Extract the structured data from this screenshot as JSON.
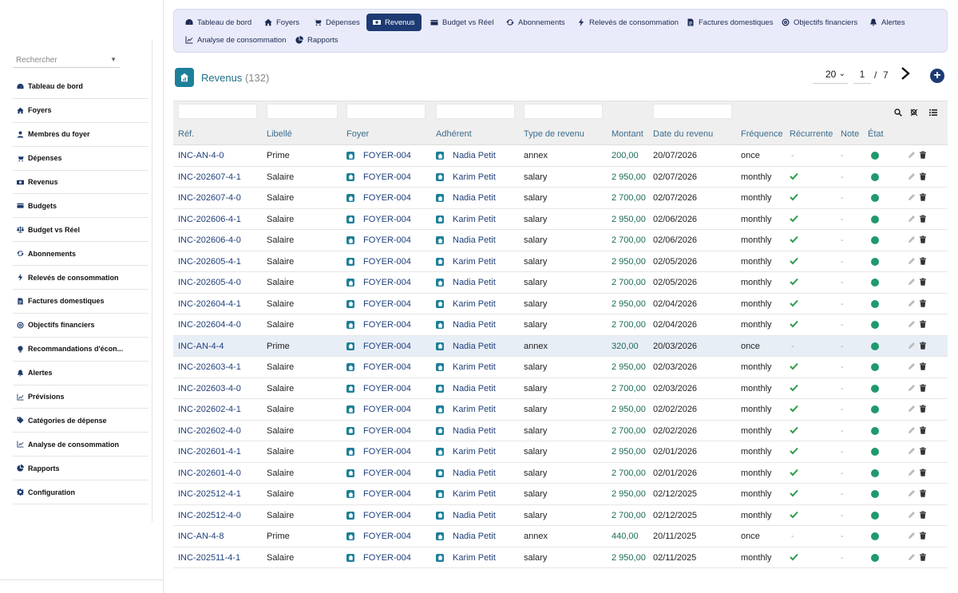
{
  "sidebar": {
    "search_placeholder": "Rechercher",
    "items": [
      {
        "label": "Tableau de bord",
        "icon": "dashboard-icon"
      },
      {
        "label": "Foyers",
        "icon": "home-icon"
      },
      {
        "label": "Membres du foyer",
        "icon": "user-icon"
      },
      {
        "label": "Dépenses",
        "icon": "cart-icon"
      },
      {
        "label": "Revenus",
        "icon": "money-icon"
      },
      {
        "label": "Budgets",
        "icon": "wallet-icon"
      },
      {
        "label": "Budget vs Réel",
        "icon": "balance-icon"
      },
      {
        "label": "Abonnements",
        "icon": "refresh-icon"
      },
      {
        "label": "Relevés de consommation",
        "icon": "bolt-icon"
      },
      {
        "label": "Factures domestiques",
        "icon": "invoice-icon"
      },
      {
        "label": "Objectifs financiers",
        "icon": "target-icon"
      },
      {
        "label": "Recommandations d'écon...",
        "icon": "lightbulb-icon"
      },
      {
        "label": "Alertes",
        "icon": "bell-icon"
      },
      {
        "label": "Prévisions",
        "icon": "trend-icon"
      },
      {
        "label": "Catégories de dépense",
        "icon": "tag-icon"
      },
      {
        "label": "Analyse de consommation",
        "icon": "chart-icon"
      },
      {
        "label": "Rapports",
        "icon": "pie-icon"
      },
      {
        "label": "Configuration",
        "icon": "gear-icon"
      }
    ]
  },
  "topnav": {
    "items": [
      {
        "label": "Tableau de bord",
        "icon": "dashboard-icon",
        "active": false
      },
      {
        "label": "Foyers",
        "icon": "home-icon",
        "active": false
      },
      {
        "label": "Dépenses",
        "icon": "cart-icon",
        "active": false
      },
      {
        "label": "Revenus",
        "icon": "money-icon",
        "active": true
      },
      {
        "label": "Budget vs Réel",
        "icon": "wallet-icon",
        "active": false
      },
      {
        "label": "Abonnements",
        "icon": "refresh-icon",
        "active": false
      },
      {
        "label": "Relevés de consommation",
        "icon": "bolt-icon",
        "active": false
      },
      {
        "label": "Factures domestiques",
        "icon": "invoice-icon",
        "active": false
      },
      {
        "label": "Objectifs financiers",
        "icon": "target-icon",
        "active": false
      },
      {
        "label": "Alertes",
        "icon": "bell-icon",
        "active": false
      },
      {
        "label": "Analyse de consommation",
        "icon": "chart-icon",
        "active": false
      },
      {
        "label": "Rapports",
        "icon": "pie-icon",
        "active": false
      }
    ]
  },
  "header": {
    "title": "Revenus",
    "count": "(132)",
    "per_page": "20",
    "page": "1",
    "page_sep": "/",
    "page_total": "7"
  },
  "table": {
    "columns": [
      "Réf.",
      "Libellé",
      "Foyer",
      "Adhérent",
      "Type de revenu",
      "Montant",
      "Date du revenu",
      "Fréquence",
      "Récurrente",
      "Note",
      "État"
    ],
    "rows": [
      {
        "ref": "INC-AN-4-0",
        "label": "Prime",
        "foyer": "FOYER-004",
        "member": "Nadia Petit",
        "type": "annex",
        "amount": "200,00",
        "date": "20/07/2026",
        "freq": "once",
        "recurring": false,
        "note": "-",
        "highlight": false
      },
      {
        "ref": "INC-202607-4-1",
        "label": "Salaire",
        "foyer": "FOYER-004",
        "member": "Karim Petit",
        "type": "salary",
        "amount": "2 950,00",
        "date": "02/07/2026",
        "freq": "monthly",
        "recurring": true,
        "note": "-",
        "highlight": false
      },
      {
        "ref": "INC-202607-4-0",
        "label": "Salaire",
        "foyer": "FOYER-004",
        "member": "Nadia Petit",
        "type": "salary",
        "amount": "2 700,00",
        "date": "02/07/2026",
        "freq": "monthly",
        "recurring": true,
        "note": "-",
        "highlight": false
      },
      {
        "ref": "INC-202606-4-1",
        "label": "Salaire",
        "foyer": "FOYER-004",
        "member": "Karim Petit",
        "type": "salary",
        "amount": "2 950,00",
        "date": "02/06/2026",
        "freq": "monthly",
        "recurring": true,
        "note": "-",
        "highlight": false
      },
      {
        "ref": "INC-202606-4-0",
        "label": "Salaire",
        "foyer": "FOYER-004",
        "member": "Nadia Petit",
        "type": "salary",
        "amount": "2 700,00",
        "date": "02/06/2026",
        "freq": "monthly",
        "recurring": true,
        "note": "-",
        "highlight": false
      },
      {
        "ref": "INC-202605-4-1",
        "label": "Salaire",
        "foyer": "FOYER-004",
        "member": "Karim Petit",
        "type": "salary",
        "amount": "2 950,00",
        "date": "02/05/2026",
        "freq": "monthly",
        "recurring": true,
        "note": "-",
        "highlight": false
      },
      {
        "ref": "INC-202605-4-0",
        "label": "Salaire",
        "foyer": "FOYER-004",
        "member": "Nadia Petit",
        "type": "salary",
        "amount": "2 700,00",
        "date": "02/05/2026",
        "freq": "monthly",
        "recurring": true,
        "note": "-",
        "highlight": false
      },
      {
        "ref": "INC-202604-4-1",
        "label": "Salaire",
        "foyer": "FOYER-004",
        "member": "Karim Petit",
        "type": "salary",
        "amount": "2 950,00",
        "date": "02/04/2026",
        "freq": "monthly",
        "recurring": true,
        "note": "-",
        "highlight": false
      },
      {
        "ref": "INC-202604-4-0",
        "label": "Salaire",
        "foyer": "FOYER-004",
        "member": "Nadia Petit",
        "type": "salary",
        "amount": "2 700,00",
        "date": "02/04/2026",
        "freq": "monthly",
        "recurring": true,
        "note": "-",
        "highlight": false
      },
      {
        "ref": "INC-AN-4-4",
        "label": "Prime",
        "foyer": "FOYER-004",
        "member": "Nadia Petit",
        "type": "annex",
        "amount": "320,00",
        "date": "20/03/2026",
        "freq": "once",
        "recurring": false,
        "note": "-",
        "highlight": true
      },
      {
        "ref": "INC-202603-4-1",
        "label": "Salaire",
        "foyer": "FOYER-004",
        "member": "Karim Petit",
        "type": "salary",
        "amount": "2 950,00",
        "date": "02/03/2026",
        "freq": "monthly",
        "recurring": true,
        "note": "-",
        "highlight": false
      },
      {
        "ref": "INC-202603-4-0",
        "label": "Salaire",
        "foyer": "FOYER-004",
        "member": "Nadia Petit",
        "type": "salary",
        "amount": "2 700,00",
        "date": "02/03/2026",
        "freq": "monthly",
        "recurring": true,
        "note": "-",
        "highlight": false
      },
      {
        "ref": "INC-202602-4-1",
        "label": "Salaire",
        "foyer": "FOYER-004",
        "member": "Karim Petit",
        "type": "salary",
        "amount": "2 950,00",
        "date": "02/02/2026",
        "freq": "monthly",
        "recurring": true,
        "note": "-",
        "highlight": false
      },
      {
        "ref": "INC-202602-4-0",
        "label": "Salaire",
        "foyer": "FOYER-004",
        "member": "Nadia Petit",
        "type": "salary",
        "amount": "2 700,00",
        "date": "02/02/2026",
        "freq": "monthly",
        "recurring": true,
        "note": "-",
        "highlight": false
      },
      {
        "ref": "INC-202601-4-1",
        "label": "Salaire",
        "foyer": "FOYER-004",
        "member": "Karim Petit",
        "type": "salary",
        "amount": "2 950,00",
        "date": "02/01/2026",
        "freq": "monthly",
        "recurring": true,
        "note": "-",
        "highlight": false
      },
      {
        "ref": "INC-202601-4-0",
        "label": "Salaire",
        "foyer": "FOYER-004",
        "member": "Nadia Petit",
        "type": "salary",
        "amount": "2 700,00",
        "date": "02/01/2026",
        "freq": "monthly",
        "recurring": true,
        "note": "-",
        "highlight": false
      },
      {
        "ref": "INC-202512-4-1",
        "label": "Salaire",
        "foyer": "FOYER-004",
        "member": "Karim Petit",
        "type": "salary",
        "amount": "2 950,00",
        "date": "02/12/2025",
        "freq": "monthly",
        "recurring": true,
        "note": "-",
        "highlight": false
      },
      {
        "ref": "INC-202512-4-0",
        "label": "Salaire",
        "foyer": "FOYER-004",
        "member": "Nadia Petit",
        "type": "salary",
        "amount": "2 700,00",
        "date": "02/12/2025",
        "freq": "monthly",
        "recurring": true,
        "note": "-",
        "highlight": false
      },
      {
        "ref": "INC-AN-4-8",
        "label": "Prime",
        "foyer": "FOYER-004",
        "member": "Nadia Petit",
        "type": "annex",
        "amount": "440,00",
        "date": "20/11/2025",
        "freq": "once",
        "recurring": false,
        "note": "-",
        "highlight": false
      },
      {
        "ref": "INC-202511-4-1",
        "label": "Salaire",
        "foyer": "FOYER-004",
        "member": "Karim Petit",
        "type": "salary",
        "amount": "2 950,00",
        "date": "02/11/2025",
        "freq": "monthly",
        "recurring": true,
        "note": "-",
        "highlight": false
      }
    ]
  },
  "colors": {
    "nav_active": "#1d3a72",
    "ref_link": "#1f3f7a",
    "amount": "#1a6b57",
    "status_ok": "#1f9a6d",
    "check": "#2e9a4a"
  }
}
